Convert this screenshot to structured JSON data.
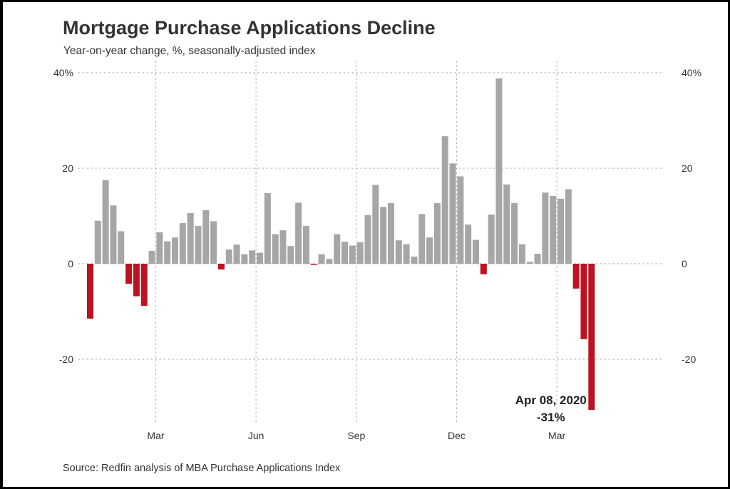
{
  "chart_data": {
    "type": "bar",
    "title": "Mortgage Purchase Applications Decline",
    "subtitle": "Year-on-year change, %, seasonally-adjusted index",
    "caption": "Source: Redfin analysis of MBA Purchase Applications Index",
    "xlabel": "",
    "ylabel": "",
    "ylim": [
      -31,
      40
    ],
    "y_ticks": [
      40,
      20,
      0,
      -20
    ],
    "y_tick_labels": [
      "40%",
      "20",
      "0",
      "-20"
    ],
    "x_ticks": [
      {
        "label": "Mar",
        "index": 8.5
      },
      {
        "label": "Jun",
        "index": 21.5
      },
      {
        "label": "Sep",
        "index": 34.5
      },
      {
        "label": "Dec",
        "index": 47.5
      },
      {
        "label": "Mar",
        "index": 60.5
      }
    ],
    "grid": true,
    "secondary_y_axis": true,
    "colors": {
      "positive": "#a6a6a6",
      "negative": "#bf1220"
    },
    "values": [
      -11.5,
      9,
      17.5,
      12.2,
      6.8,
      -4.2,
      -6.8,
      -8.8,
      2.7,
      6.6,
      4.7,
      5.5,
      8.5,
      10.6,
      7.9,
      11.2,
      8.9,
      -1.2,
      3,
      4,
      2,
      2.8,
      2.3,
      14.8,
      6.2,
      7,
      3.7,
      12.8,
      7.9,
      -0.2,
      2,
      1,
      6.2,
      4.6,
      3.8,
      4.5,
      10.2,
      16.5,
      11.9,
      12.7,
      4.9,
      4.1,
      1.5,
      10.4,
      5.5,
      12.7,
      26.7,
      21,
      18.3,
      8.2,
      5,
      -2.2,
      10.3,
      38.8,
      16.6,
      12.7,
      4.1,
      0.4,
      2.1,
      14.9,
      14.2,
      13.6,
      15.6,
      -5.2,
      -15.8,
      -30.6
    ],
    "annotations": [
      {
        "label": "Apr 08, 2020",
        "value_text": "-31%",
        "index": 65
      }
    ]
  }
}
